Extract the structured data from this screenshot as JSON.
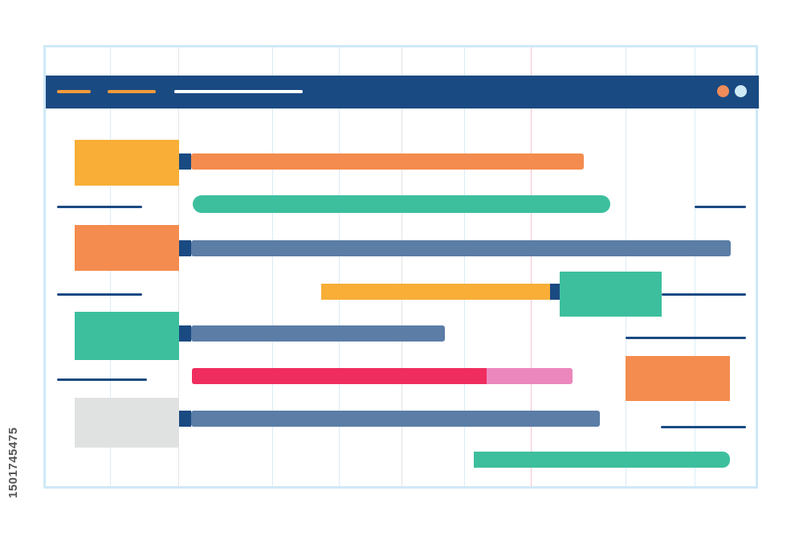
{
  "titlebar": {
    "background_color": "#1a4a82",
    "left_dashes": [
      "orange-dash",
      "orange-dash",
      "white-dash"
    ],
    "window_controls": [
      {
        "name": "orange-circle-icon",
        "color": "#f08c5a"
      },
      {
        "name": "light-blue-circle-icon",
        "color": "#cfeaf7"
      }
    ]
  },
  "gantt": {
    "rows": [
      {
        "label_block_color": "#f8ae37",
        "bar_color": "#f48c4f"
      },
      {
        "bar_color": "#3dbf9e"
      },
      {
        "label_block_color": "#f48c4f",
        "bar_color": "#5b7da6"
      },
      {
        "bar_color": "#f8ae37",
        "milestone_color": "#3dbf9e"
      },
      {
        "label_block_color": "#3dbf9e",
        "bar_color": "#5b7da6"
      },
      {
        "bar_color": "#ef2d5e",
        "bar_extension_color": "#ec87bd",
        "side_block_color": "#f48c4f"
      },
      {
        "label_block_color": "#e0e2e1",
        "bar_color": "#5b7da6"
      },
      {
        "bar_color": "#3dbf9e"
      }
    ]
  },
  "watermark": {
    "id_text": "1501745475"
  }
}
